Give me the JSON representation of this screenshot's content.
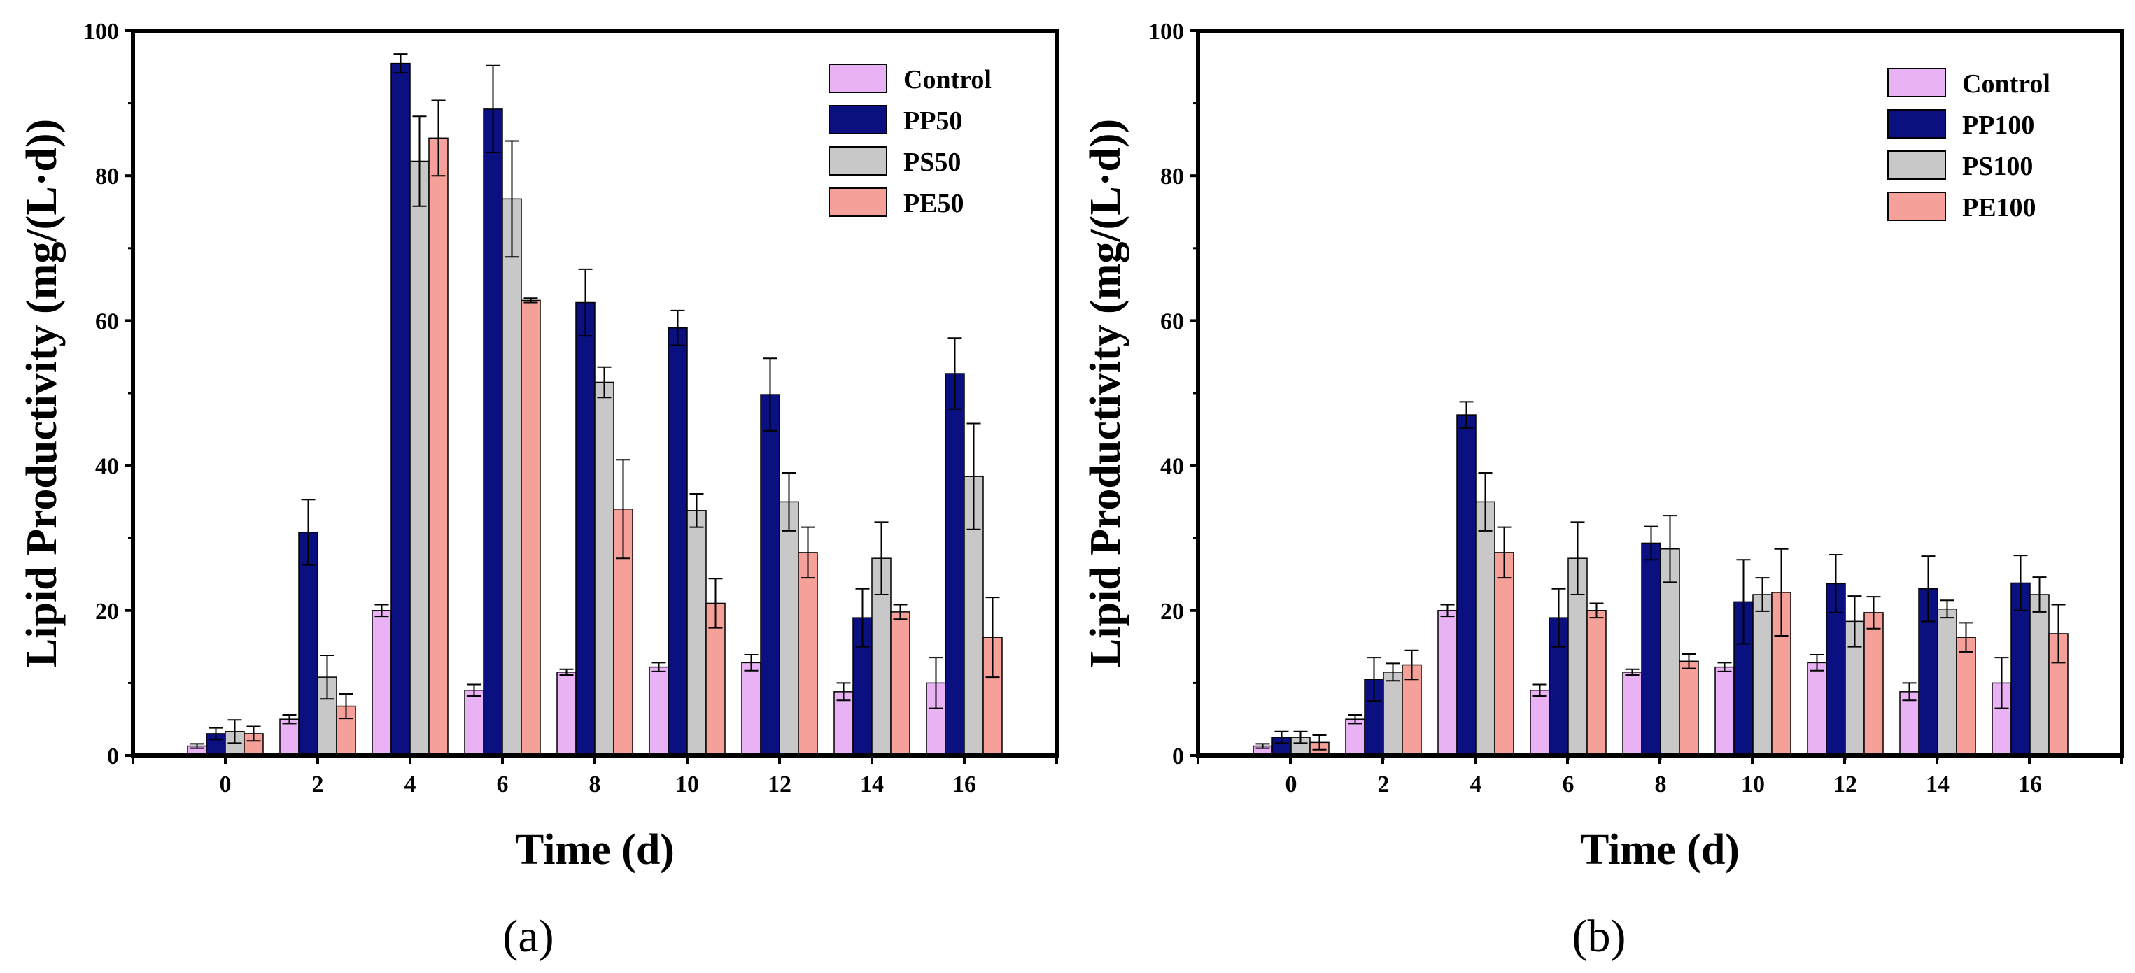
{
  "figure_labels": [
    "(a)",
    "(b)"
  ],
  "colors": {
    "Control": "#e8b2f4",
    "PP": "#0a1080",
    "PS": "#c8c8c8",
    "PE": "#f6a09a"
  },
  "chart_data": [
    {
      "type": "bar",
      "panel": "(a)",
      "title": "",
      "xlabel": "Time (d)",
      "ylabel": "Lipid Productivity (mg/(L·d))",
      "ylim": [
        0,
        100
      ],
      "yticks": [
        0,
        20,
        40,
        60,
        80,
        100
      ],
      "categories": [
        "0",
        "2",
        "4",
        "6",
        "8",
        "10",
        "12",
        "14",
        "16"
      ],
      "legend_position": "top-right",
      "series": [
        {
          "name": "Control",
          "color_key": "Control",
          "values": [
            1.3,
            5.0,
            20.0,
            9.0,
            11.5,
            12.2,
            12.8,
            8.8,
            10.0
          ],
          "errors": [
            0.3,
            0.6,
            0.8,
            0.8,
            0.4,
            0.6,
            1.1,
            1.2,
            3.5
          ]
        },
        {
          "name": "PP50",
          "color_key": "PP",
          "values": [
            3.0,
            30.8,
            95.5,
            89.2,
            62.5,
            59.0,
            49.8,
            19.0,
            52.7
          ],
          "errors": [
            0.8,
            4.5,
            1.3,
            6.0,
            4.6,
            2.4,
            5.0,
            4.0,
            4.9
          ]
        },
        {
          "name": "PS50",
          "color_key": "PS",
          "values": [
            3.3,
            10.8,
            82.0,
            76.8,
            51.5,
            33.8,
            35.0,
            27.2,
            38.5
          ],
          "errors": [
            1.6,
            3.0,
            6.2,
            8.0,
            2.1,
            2.3,
            4.0,
            5.0,
            7.3
          ]
        },
        {
          "name": "PE50",
          "color_key": "PE",
          "values": [
            3.0,
            6.8,
            85.2,
            62.8,
            34.0,
            21.0,
            28.0,
            19.8,
            16.3
          ],
          "errors": [
            1.0,
            1.7,
            5.2,
            0.3,
            6.8,
            3.4,
            3.5,
            1.0,
            5.5
          ]
        }
      ]
    },
    {
      "type": "bar",
      "panel": "(b)",
      "title": "",
      "xlabel": "Time (d)",
      "ylabel": "Lipid Productivity (mg/(L·d))",
      "ylim": [
        0,
        100
      ],
      "yticks": [
        0,
        20,
        40,
        60,
        80,
        100
      ],
      "categories": [
        "0",
        "2",
        "4",
        "6",
        "8",
        "10",
        "12",
        "14",
        "16"
      ],
      "legend_position": "top-right",
      "series": [
        {
          "name": "Control",
          "color_key": "Control",
          "values": [
            1.3,
            5.0,
            20.0,
            9.0,
            11.5,
            12.2,
            12.8,
            8.8,
            10.0
          ],
          "errors": [
            0.3,
            0.6,
            0.8,
            0.8,
            0.4,
            0.6,
            1.1,
            1.2,
            3.5
          ]
        },
        {
          "name": "PP100",
          "color_key": "PP",
          "values": [
            2.5,
            10.5,
            47.0,
            19.0,
            29.3,
            21.2,
            23.7,
            23.0,
            23.8
          ],
          "errors": [
            0.8,
            3.0,
            1.8,
            4.0,
            2.3,
            5.8,
            4.0,
            4.5,
            3.8
          ]
        },
        {
          "name": "PS100",
          "color_key": "PS",
          "values": [
            2.5,
            11.5,
            35.0,
            27.2,
            28.5,
            22.2,
            18.5,
            20.2,
            22.2
          ],
          "errors": [
            0.8,
            1.2,
            4.0,
            5.0,
            4.6,
            2.3,
            3.5,
            1.2,
            2.4
          ]
        },
        {
          "name": "PE100",
          "color_key": "PE",
          "values": [
            1.8,
            12.5,
            28.0,
            20.0,
            13.0,
            22.5,
            19.7,
            16.3,
            16.8
          ],
          "errors": [
            1.0,
            2.0,
            3.5,
            1.0,
            1.0,
            6.0,
            2.2,
            2.0,
            4.0
          ]
        }
      ]
    }
  ]
}
